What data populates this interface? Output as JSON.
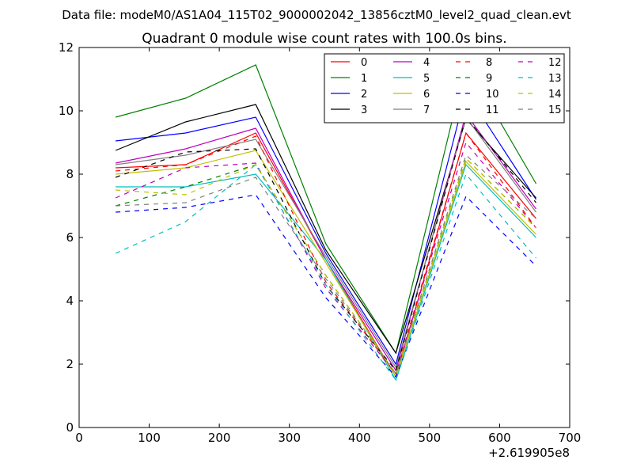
{
  "chart_data": {
    "type": "line",
    "suptitle": "Data file: modeM0/AS1A04_115T02_9000002042_13856cztM0_level2_quad_clean.evt",
    "title": "Quadrant 0 module wise count rates with 100.0s bins.",
    "xlabel": "",
    "ylabel": "",
    "x_offset_label": "+2.619905e8",
    "xlim": [
      0,
      700
    ],
    "ylim": [
      0,
      12
    ],
    "xticks": [
      0,
      100,
      200,
      300,
      400,
      500,
      600,
      700
    ],
    "yticks": [
      0,
      2,
      4,
      6,
      8,
      10,
      12
    ],
    "grid": false,
    "legend_position": "top-right",
    "legend_columns": 4,
    "x": [
      52,
      152,
      252,
      352,
      452,
      552,
      652
    ],
    "series": [
      {
        "name": "0",
        "color": "#ff0000",
        "style": "solid",
        "values": [
          8.2,
          8.3,
          9.3,
          5.3,
          1.6,
          9.3,
          6.6
        ]
      },
      {
        "name": "1",
        "color": "#008000",
        "style": "solid",
        "values": [
          9.8,
          10.4,
          11.45,
          5.8,
          2.35,
          11.5,
          7.7
        ]
      },
      {
        "name": "2",
        "color": "#0000ff",
        "style": "solid",
        "values": [
          9.05,
          9.3,
          9.8,
          5.5,
          2.0,
          10.6,
          7.2
        ]
      },
      {
        "name": "3",
        "color": "#000000",
        "style": "solid",
        "values": [
          8.75,
          9.65,
          10.2,
          5.6,
          2.35,
          9.75,
          7.25
        ]
      },
      {
        "name": "4",
        "color": "#bf00bf",
        "style": "solid",
        "values": [
          8.35,
          8.8,
          9.45,
          5.3,
          1.8,
          9.9,
          6.9
        ]
      },
      {
        "name": "5",
        "color": "#00bfbf",
        "style": "solid",
        "values": [
          7.6,
          7.6,
          8.0,
          5.3,
          1.5,
          8.3,
          6.0
        ]
      },
      {
        "name": "6",
        "color": "#bfbf00",
        "style": "solid",
        "values": [
          8.0,
          8.2,
          8.75,
          5.2,
          1.6,
          8.4,
          6.1
        ]
      },
      {
        "name": "7",
        "color": "#808080",
        "style": "solid",
        "values": [
          8.3,
          8.6,
          9.1,
          5.4,
          1.9,
          9.8,
          6.8
        ]
      },
      {
        "name": "8",
        "color": "#ff0000",
        "style": "dashed",
        "values": [
          8.1,
          8.3,
          9.2,
          4.6,
          1.7,
          9.3,
          6.3
        ]
      },
      {
        "name": "9",
        "color": "#008000",
        "style": "dashed",
        "values": [
          7.0,
          7.6,
          8.3,
          4.8,
          1.7,
          8.5,
          6.3
        ]
      },
      {
        "name": "10",
        "color": "#0000ff",
        "style": "dashed",
        "values": [
          6.8,
          6.95,
          7.35,
          4.1,
          1.6,
          7.3,
          5.1
        ]
      },
      {
        "name": "11",
        "color": "#000000",
        "style": "dashed",
        "values": [
          7.9,
          8.7,
          8.8,
          4.5,
          1.8,
          9.8,
          7.1
        ]
      },
      {
        "name": "12",
        "color": "#bf00bf",
        "style": "dashed",
        "values": [
          7.25,
          8.2,
          8.35,
          4.4,
          1.7,
          9.0,
          6.3
        ]
      },
      {
        "name": "13",
        "color": "#00bfbf",
        "style": "dashed",
        "values": [
          5.5,
          6.5,
          8.3,
          4.5,
          1.5,
          8.0,
          5.35
        ]
      },
      {
        "name": "14",
        "color": "#bfbf00",
        "style": "dashed",
        "values": [
          7.5,
          7.35,
          8.3,
          4.8,
          1.7,
          8.5,
          6.3
        ]
      },
      {
        "name": "15",
        "color": "#808080",
        "style": "dashed",
        "values": [
          7.0,
          7.1,
          7.9,
          4.7,
          1.7,
          8.6,
          6.6
        ]
      }
    ]
  }
}
